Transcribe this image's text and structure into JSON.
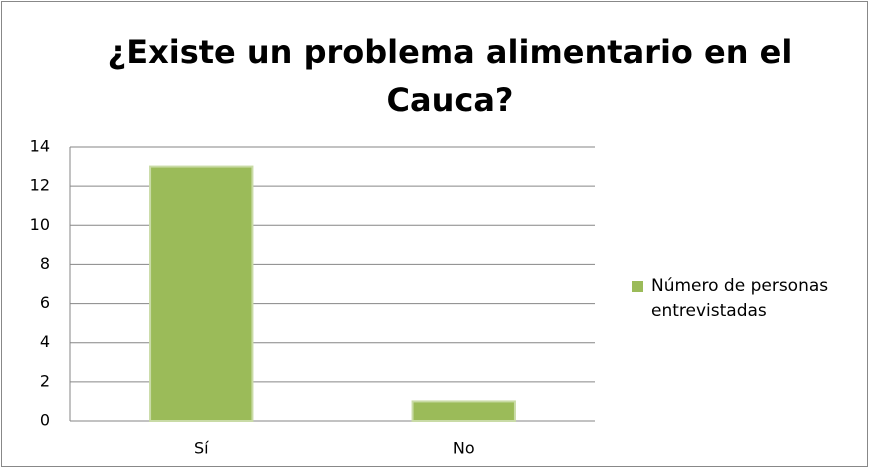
{
  "chart_data": {
    "type": "bar",
    "title": "¿Existe un problema alimentario en el Cauca?",
    "categories": [
      "Sí",
      "No"
    ],
    "series": [
      {
        "name": "Número de personas entrevistadas",
        "color": "#9bbb59",
        "values": [
          13,
          1
        ]
      }
    ],
    "ylim": [
      0,
      14
    ],
    "yticks": [
      0,
      2,
      4,
      6,
      8,
      10,
      12,
      14
    ],
    "grid": true,
    "legend": "right"
  }
}
